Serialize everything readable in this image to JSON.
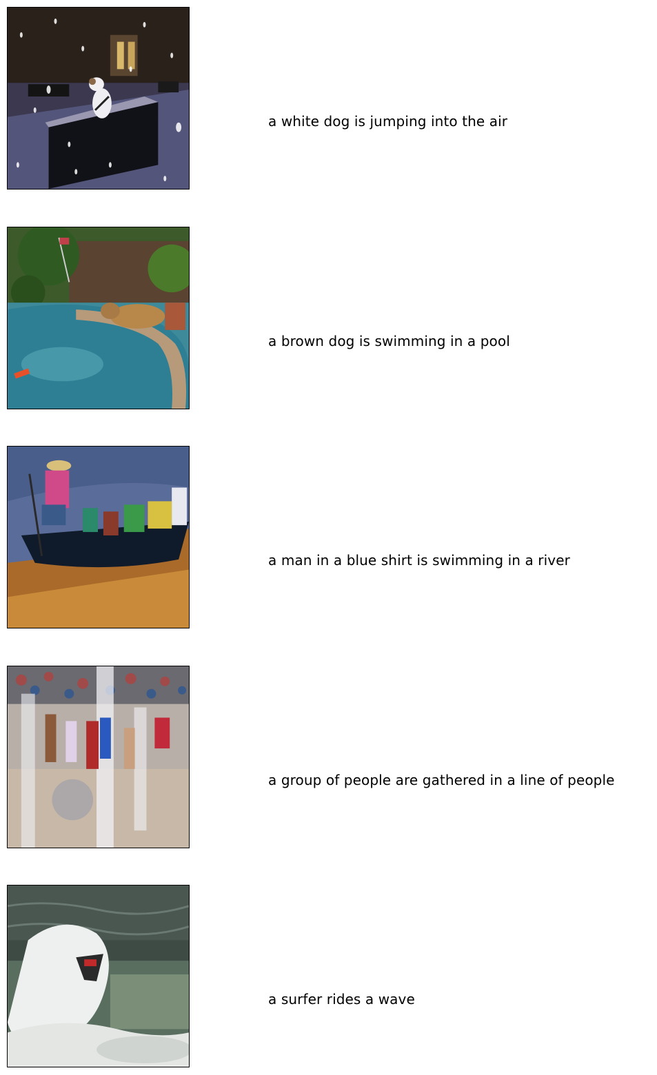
{
  "results": [
    {
      "caption": "a white dog is jumping into the air"
    },
    {
      "caption": "a brown dog is swimming in a pool"
    },
    {
      "caption": "a man in a blue shirt is swimming in a river"
    },
    {
      "caption": "a group of people are gathered in a line of people"
    },
    {
      "caption": "a surfer rides a wave"
    }
  ]
}
